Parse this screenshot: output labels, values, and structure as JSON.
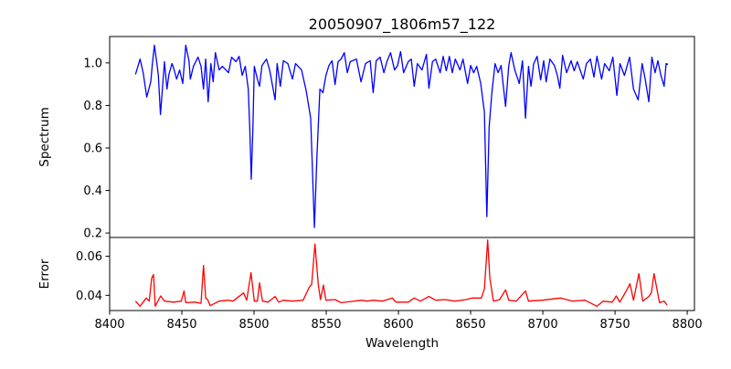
{
  "chart_data": [
    {
      "type": "line",
      "title": "20050907_1806m57_122",
      "xlabel": "",
      "ylabel": "Spectrum",
      "xlim": [
        8400,
        8805
      ],
      "ylim": [
        0.179,
        1.124
      ],
      "yticks": [
        "0.2",
        "0.4",
        "0.6",
        "0.8",
        "1.0"
      ],
      "ytick_values": [
        0.2,
        0.4,
        0.6,
        0.8,
        1.0
      ],
      "grid": false,
      "color": "#0000ff",
      "series": [
        {
          "name": "Spectrum",
          "x": [
            8417.9,
            8421.1,
            8423.2,
            8425.7,
            8428.5,
            8429.5,
            8431.0,
            8432.7,
            8433.7,
            8435.2,
            8438.0,
            8439.7,
            8441.1,
            8443.2,
            8444.3,
            8446.4,
            8448.5,
            8450.6,
            8452.7,
            8454.9,
            8455.9,
            8458.0,
            8461.2,
            8463.3,
            8465.0,
            8466.5,
            8468.2,
            8470.1,
            8471.7,
            8473.2,
            8475.9,
            8478.0,
            8482.3,
            8484.4,
            8487.5,
            8489.7,
            8491.8,
            8493.9,
            8496.0,
            8497.0,
            8498.1,
            8499.2,
            8500.2,
            8502.3,
            8503.8,
            8505.5,
            8508.6,
            8510.8,
            8514.6,
            8516.0,
            8518.2,
            8520.3,
            8523.4,
            8526.6,
            8528.7,
            8532.9,
            8536.1,
            8539.2,
            8541.8,
            8543.5,
            8545.6,
            8547.7,
            8549.8,
            8551.9,
            8554.0,
            8556.1,
            8558.2,
            8560.3,
            8562.5,
            8564.6,
            8566.6,
            8570.9,
            8574.1,
            8577.2,
            8580.4,
            8582.5,
            8584.6,
            8587.3,
            8589.9,
            8592.0,
            8594.5,
            8597.3,
            8599.4,
            8601.5,
            8603.6,
            8606.8,
            8608.9,
            8610.9,
            8613.1,
            8616.3,
            8619.4,
            8621.1,
            8623.6,
            8625.8,
            8628.9,
            8631.0,
            8633.1,
            8635.3,
            8637.3,
            8639.4,
            8642.6,
            8644.7,
            8647.9,
            8650.0,
            8652.1,
            8654.2,
            8657.0,
            8659.5,
            8661.2,
            8662.8,
            8664.7,
            8666.9,
            8669.0,
            8671.1,
            8674.2,
            8676.4,
            8678.0,
            8680.6,
            8683.7,
            8685.9,
            8688.0,
            8690.1,
            8691.8,
            8693.7,
            8696.0,
            8698.5,
            8700.6,
            8702.3,
            8704.9,
            8708.0,
            8710.1,
            8711.8,
            8713.7,
            8716.5,
            8719.6,
            8721.7,
            8723.9,
            8728.0,
            8730.2,
            8732.9,
            8735.4,
            8737.5,
            8740.7,
            8742.8,
            8746.0,
            8748.5,
            8751.3,
            8753.4,
            8756.5,
            8760.1,
            8762.8,
            8766.0,
            8768.8,
            8770.9,
            8773.4,
            8775.5,
            8777.7,
            8779.7,
            8781.8,
            8784.0,
            8785.4,
            8786.7
          ],
          "y": [
            0.946,
            1.018,
            0.954,
            0.839,
            0.911,
            0.988,
            1.083,
            0.997,
            0.941,
            0.757,
            1.006,
            0.877,
            0.946,
            0.997,
            0.976,
            0.924,
            0.967,
            0.903,
            1.083,
            1.01,
            0.924,
            0.984,
            1.027,
            0.984,
            0.877,
            1.018,
            0.817,
            0.997,
            0.911,
            1.048,
            0.967,
            0.984,
            0.954,
            1.027,
            1.006,
            1.031,
            0.941,
            0.984,
            0.877,
            0.697,
            0.453,
            0.697,
            0.984,
            0.924,
            0.89,
            0.988,
            1.018,
            0.967,
            0.826,
            0.997,
            0.89,
            1.01,
            0.997,
            0.924,
            0.997,
            0.967,
            0.869,
            0.74,
            0.226,
            0.556,
            0.877,
            0.86,
            0.941,
            0.988,
            1.01,
            0.898,
            1.006,
            1.018,
            1.048,
            0.954,
            1.006,
            1.018,
            0.911,
            0.997,
            1.01,
            0.86,
            1.01,
            1.027,
            0.954,
            1.006,
            1.048,
            0.967,
            0.988,
            1.053,
            0.954,
            1.006,
            1.018,
            0.89,
            0.997,
            0.967,
            1.04,
            0.881,
            1.006,
            1.018,
            0.954,
            1.031,
            0.963,
            1.031,
            0.954,
            1.018,
            0.967,
            1.018,
            0.903,
            0.988,
            0.954,
            0.984,
            0.903,
            0.77,
            0.277,
            0.697,
            0.86,
            0.997,
            0.954,
            0.988,
            0.795,
            0.988,
            1.048,
            0.967,
            0.903,
            1.01,
            0.74,
            0.984,
            0.89,
            0.997,
            1.031,
            0.92,
            1.01,
            0.911,
            1.018,
            0.988,
            0.941,
            0.881,
            1.035,
            0.954,
            1.01,
            0.963,
            1.006,
            0.924,
            0.997,
            1.018,
            0.933,
            1.031,
            0.924,
            0.997,
            0.963,
            1.027,
            0.847,
            0.997,
            0.941,
            1.027,
            0.877,
            0.826,
            0.997,
            0.924,
            0.817,
            1.027,
            0.954,
            1.01,
            0.941,
            0.89,
            0.997,
            0.993
          ]
        }
      ]
    },
    {
      "type": "line",
      "title": "",
      "xlabel": "Wavelength",
      "ylabel": "Error",
      "xlim": [
        8400,
        8805
      ],
      "ylim": [
        0.0322,
        0.0696
      ],
      "xticks": [
        "8400",
        "8450",
        "8500",
        "8550",
        "8600",
        "8650",
        "8700",
        "8750",
        "8800"
      ],
      "xtick_values": [
        8400,
        8450,
        8500,
        8550,
        8600,
        8650,
        8700,
        8750,
        8800
      ],
      "yticks": [
        "0.04",
        "0.06"
      ],
      "ytick_values": [
        0.04,
        0.06
      ],
      "grid": false,
      "color": "#ff0000",
      "series": [
        {
          "name": "Error",
          "x": [
            8417.9,
            8421.1,
            8425.3,
            8427.4,
            8429.1,
            8430.4,
            8431.6,
            8435.3,
            8438.0,
            8444.3,
            8449.6,
            8451.5,
            8452.7,
            8459.1,
            8463.3,
            8465.0,
            8466.5,
            8467.9,
            8469.6,
            8475.9,
            8482.3,
            8485.4,
            8492.8,
            8494.9,
            8497.9,
            8500.2,
            8502.3,
            8503.8,
            8505.9,
            8509.7,
            8514.6,
            8517.1,
            8520.3,
            8526.6,
            8534.0,
            8538.2,
            8539.9,
            8542.2,
            8544.5,
            8546.0,
            8548.1,
            8549.8,
            8556.1,
            8560.3,
            8574.5,
            8578.3,
            8582.5,
            8588.8,
            8595.8,
            8598.3,
            8606.8,
            8610.9,
            8615.2,
            8621.1,
            8625.8,
            8632.1,
            8639.4,
            8646.8,
            8651.1,
            8657.4,
            8659.5,
            8661.8,
            8663.3,
            8665.8,
            8670.1,
            8674.2,
            8676.4,
            8681.6,
            8688.0,
            8690.1,
            8699.6,
            8712.2,
            8720.7,
            8729.1,
            8737.5,
            8741.8,
            8748.1,
            8750.8,
            8753.3,
            8757.6,
            8760.3,
            8762.8,
            8766.5,
            8769.2,
            8773.4,
            8775.1,
            8777.0,
            8779.3,
            8780.8,
            8784.0,
            8786.1
          ],
          "y": [
            0.037,
            0.0344,
            0.0386,
            0.037,
            0.0487,
            0.0506,
            0.0344,
            0.0397,
            0.037,
            0.0365,
            0.037,
            0.0422,
            0.0362,
            0.0365,
            0.0359,
            0.0553,
            0.0386,
            0.0378,
            0.0347,
            0.037,
            0.0375,
            0.037,
            0.0412,
            0.0375,
            0.0516,
            0.037,
            0.037,
            0.0464,
            0.037,
            0.0365,
            0.0394,
            0.0365,
            0.0375,
            0.037,
            0.0375,
            0.0441,
            0.0456,
            0.0663,
            0.0456,
            0.0378,
            0.0453,
            0.0375,
            0.0378,
            0.0362,
            0.0375,
            0.037,
            0.0375,
            0.037,
            0.0386,
            0.0365,
            0.0365,
            0.0386,
            0.037,
            0.0394,
            0.0375,
            0.0378,
            0.037,
            0.0378,
            0.0386,
            0.0386,
            0.0433,
            0.0683,
            0.0487,
            0.037,
            0.0378,
            0.0428,
            0.0375,
            0.037,
            0.0422,
            0.037,
            0.0375,
            0.0386,
            0.037,
            0.0375,
            0.0344,
            0.037,
            0.0365,
            0.0397,
            0.0365,
            0.042,
            0.0459,
            0.0375,
            0.0511,
            0.037,
            0.0394,
            0.0412,
            0.0511,
            0.042,
            0.0362,
            0.037,
            0.035
          ]
        }
      ]
    }
  ]
}
